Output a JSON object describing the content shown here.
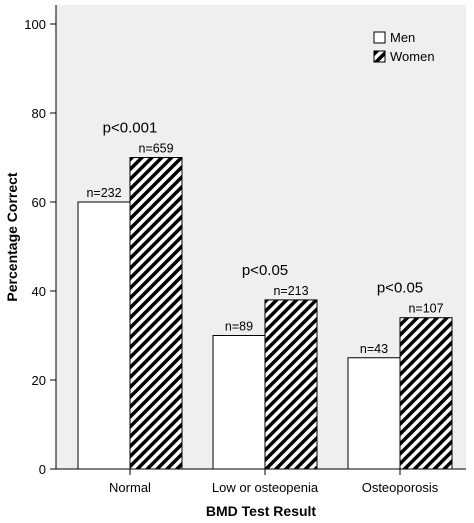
{
  "chart_data": {
    "type": "bar",
    "categories": [
      "Normal",
      "Low or osteopenia",
      "Osteoporosis"
    ],
    "series": [
      {
        "name": "Men",
        "values": [
          60,
          30,
          25
        ],
        "n_labels": [
          "n=232",
          "n=89",
          "n=43"
        ]
      },
      {
        "name": "Women",
        "values": [
          70,
          38,
          34
        ],
        "n_labels": [
          "n=659",
          "n=213",
          "n=107"
        ]
      }
    ],
    "p_values": [
      "p<0.001",
      "p<0.05",
      "p<0.05"
    ],
    "xlabel": "BMD Test Result",
    "ylabel": "Percentage Correct",
    "ylim": [
      0,
      100
    ],
    "yticks": [
      0,
      20,
      40,
      60,
      80,
      100
    ],
    "grid": false,
    "legend_position": "top-right",
    "colors": {
      "background": "#efefef",
      "men_fill": "#ffffff",
      "women_stripe": "#000000",
      "women_fill": "#ffffff"
    }
  }
}
